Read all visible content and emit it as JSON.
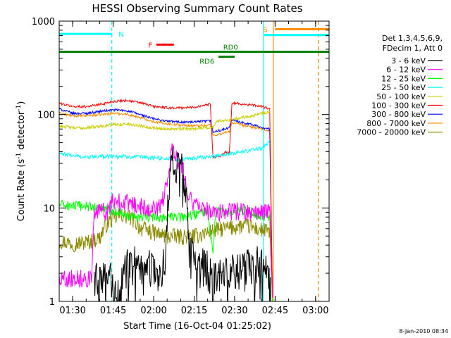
{
  "chart_data": {
    "type": "line",
    "title": "HESSI Observing Summary Count Rates",
    "xlabel": "Start Time (16-Oct-04 01:25:02)",
    "ylabel_main": "Count Rate (s",
    "ylabel_sup1": "-1",
    "ylabel_mid": " detector",
    "ylabel_sup2": "-1",
    "ylabel_end": ")",
    "yscale": "log",
    "xlim": [
      85,
      185
    ],
    "ylim": [
      1,
      1000
    ],
    "x_ticks": [
      90,
      105,
      120,
      135,
      150,
      165,
      180
    ],
    "x_tick_labels": [
      "01:30",
      "01:45",
      "02:00",
      "02:15",
      "02:30",
      "02:45",
      "03:00"
    ],
    "y_ticks": [
      1,
      10,
      100,
      1000
    ],
    "y_tick_labels": [
      "1",
      "10",
      "100",
      "1000"
    ],
    "legend_header": [
      "Det 1,3,4,5,6,9,",
      "FDecim 1, Att 0"
    ],
    "legend_placement": "right",
    "series": [
      {
        "name": "3 - 6 keV",
        "color": "#000000",
        "base": [
          [
            85,
            1.7
          ],
          [
            100,
            1.8
          ],
          [
            104,
            1.8
          ],
          [
            106,
            1.1
          ],
          [
            110,
            2.5
          ],
          [
            115,
            2.8
          ],
          [
            118,
            2.6
          ],
          [
            121,
            1.9
          ],
          [
            124,
            2.8
          ],
          [
            125,
            8
          ],
          [
            126,
            25
          ],
          [
            127,
            32
          ],
          [
            128,
            25
          ],
          [
            129,
            30
          ],
          [
            130,
            32
          ],
          [
            131,
            22
          ],
          [
            132,
            15
          ],
          [
            133,
            7
          ],
          [
            135,
            3.0
          ],
          [
            140,
            2.4
          ],
          [
            142,
            1.7
          ],
          [
            145,
            2.4
          ],
          [
            150,
            2.3
          ],
          [
            155,
            2.5
          ],
          [
            160,
            2.8
          ],
          [
            162,
            2.6
          ],
          [
            163,
            1.5
          ],
          [
            164,
            1.0
          ]
        ],
        "noise": 0.45,
        "start": 98,
        "end": 164
      },
      {
        "name": "6 - 12 keV",
        "color": "#ff00ff",
        "base": [
          [
            85,
            1.8
          ],
          [
            97,
            1.8
          ],
          [
            98,
            9
          ],
          [
            103,
            9.5
          ],
          [
            105,
            12
          ],
          [
            110,
            11.5
          ],
          [
            115,
            10.5
          ],
          [
            120,
            10
          ],
          [
            123,
            11
          ],
          [
            125,
            20
          ],
          [
            127,
            50
          ],
          [
            128,
            38
          ],
          [
            129,
            32
          ],
          [
            130,
            30
          ],
          [
            131,
            26
          ],
          [
            132,
            20
          ],
          [
            133,
            14
          ],
          [
            135,
            11
          ],
          [
            140,
            9.5
          ],
          [
            145,
            9
          ],
          [
            150,
            9.5
          ],
          [
            155,
            9
          ],
          [
            160,
            9
          ],
          [
            163,
            9.5
          ],
          [
            164,
            1.0
          ]
        ],
        "noise": 0.22,
        "start": 85,
        "end": 164
      },
      {
        "name": "12 - 25 keV",
        "color": "#00ff00",
        "base": [
          [
            85,
            11
          ],
          [
            90,
            10.5
          ],
          [
            95,
            10.5
          ],
          [
            100,
            10
          ],
          [
            105,
            9.5
          ],
          [
            110,
            8.5
          ],
          [
            115,
            8
          ],
          [
            120,
            8
          ],
          [
            125,
            8
          ],
          [
            130,
            8
          ],
          [
            135,
            8.5
          ],
          [
            140,
            9.5
          ],
          [
            142,
            3
          ],
          [
            143,
            9.5
          ],
          [
            145,
            9
          ],
          [
            150,
            9
          ],
          [
            155,
            9.5
          ],
          [
            158,
            8.5
          ],
          [
            162,
            8
          ],
          [
            163,
            7.5
          ],
          [
            164,
            1.0
          ]
        ],
        "noise": 0.12,
        "start": 85,
        "end": 164
      },
      {
        "name": "25 - 50 keV",
        "color": "#00ffff",
        "base": [
          [
            85,
            38
          ],
          [
            95,
            35
          ],
          [
            105,
            36
          ],
          [
            115,
            35
          ],
          [
            125,
            34
          ],
          [
            130,
            33
          ],
          [
            135,
            34
          ],
          [
            140,
            35
          ],
          [
            145,
            37
          ],
          [
            150,
            39
          ],
          [
            155,
            41
          ],
          [
            160,
            44
          ],
          [
            163,
            52
          ]
        ],
        "noise": 0.05,
        "start": 85,
        "end": 163
      },
      {
        "name": "50 - 100 keV",
        "color": "#cccc00",
        "base": [
          [
            85,
            76
          ],
          [
            90,
            72
          ],
          [
            95,
            72
          ],
          [
            100,
            75
          ],
          [
            105,
            78
          ],
          [
            110,
            79
          ],
          [
            115,
            76
          ],
          [
            120,
            72
          ],
          [
            125,
            70
          ],
          [
            130,
            70
          ],
          [
            135,
            71
          ],
          [
            140,
            73
          ],
          [
            142,
            73
          ],
          [
            143,
            83
          ],
          [
            145,
            86
          ],
          [
            150,
            90
          ],
          [
            155,
            96
          ],
          [
            160,
            103
          ],
          [
            163,
            108
          ]
        ],
        "noise": 0.04,
        "start": 85,
        "end": 163
      },
      {
        "name": "100 - 300 keV",
        "color": "#ff0000",
        "base": [
          [
            85,
            132
          ],
          [
            90,
            122
          ],
          [
            95,
            122
          ],
          [
            100,
            128
          ],
          [
            105,
            138
          ],
          [
            110,
            142
          ],
          [
            115,
            134
          ],
          [
            120,
            122
          ],
          [
            125,
            118
          ],
          [
            130,
            118
          ],
          [
            135,
            120
          ],
          [
            140,
            128
          ],
          [
            141,
            130
          ],
          [
            142,
            35
          ],
          [
            145,
            36
          ],
          [
            147,
            40
          ],
          [
            148,
            38
          ],
          [
            149,
            130
          ],
          [
            150,
            132
          ],
          [
            155,
            128
          ],
          [
            160,
            122
          ],
          [
            163,
            115
          ],
          [
            164,
            1.2
          ]
        ],
        "noise": 0.03,
        "start": 85,
        "end": 164
      },
      {
        "name": "300 - 800 keV",
        "color": "#0000ff",
        "base": [
          [
            85,
            115
          ],
          [
            90,
            103
          ],
          [
            95,
            103
          ],
          [
            100,
            108
          ],
          [
            105,
            112
          ],
          [
            110,
            110
          ],
          [
            115,
            100
          ],
          [
            120,
            90
          ],
          [
            125,
            85
          ],
          [
            130,
            83
          ],
          [
            135,
            83
          ],
          [
            140,
            85
          ],
          [
            141,
            86
          ],
          [
            142,
            65
          ],
          [
            145,
            68
          ],
          [
            148,
            72
          ],
          [
            149,
            88
          ],
          [
            150,
            86
          ],
          [
            155,
            80
          ],
          [
            160,
            73
          ],
          [
            163,
            70
          ],
          [
            164,
            1.2
          ]
        ],
        "noise": 0.03,
        "start": 85,
        "end": 164
      },
      {
        "name": "800 - 7000 keV",
        "color": "#ff8c00",
        "base": [
          [
            85,
            103
          ],
          [
            90,
            97
          ],
          [
            95,
            97
          ],
          [
            100,
            100
          ],
          [
            105,
            103
          ],
          [
            110,
            101
          ],
          [
            115,
            93
          ],
          [
            120,
            84
          ],
          [
            125,
            80
          ],
          [
            130,
            77
          ],
          [
            135,
            76
          ],
          [
            140,
            77
          ],
          [
            141,
            78
          ],
          [
            142,
            60
          ],
          [
            145,
            62
          ],
          [
            148,
            66
          ],
          [
            149,
            82
          ],
          [
            150,
            80
          ],
          [
            155,
            75
          ],
          [
            160,
            70
          ],
          [
            163,
            67
          ],
          [
            164,
            1.2
          ]
        ],
        "noise": 0.03,
        "start": 85,
        "end": 164
      },
      {
        "name": "7000 - 20000 keV",
        "color": "#8b8b00",
        "base": [
          [
            85,
            4.5
          ],
          [
            90,
            4.2
          ],
          [
            95,
            4.3
          ],
          [
            100,
            4.8
          ],
          [
            102,
            6.5
          ],
          [
            104,
            7.5
          ],
          [
            108,
            8.5
          ],
          [
            112,
            7.8
          ],
          [
            115,
            6.2
          ],
          [
            120,
            5.5
          ],
          [
            125,
            5
          ],
          [
            130,
            5
          ],
          [
            135,
            5
          ],
          [
            140,
            5.5
          ],
          [
            145,
            6
          ],
          [
            150,
            6.3
          ],
          [
            155,
            6.5
          ],
          [
            158,
            6
          ],
          [
            162,
            5.7
          ],
          [
            163,
            5.7
          ],
          [
            164,
            1.0
          ]
        ],
        "noise": 0.2,
        "start": 85,
        "end": 164
      }
    ],
    "vlines": [
      {
        "x": 104.5,
        "color": "#00ffff",
        "style": "dashed"
      },
      {
        "x": 160.7,
        "color": "#00ffff",
        "style": "solid"
      },
      {
        "x": 164.3,
        "color": "#ff8c00",
        "style": "solid"
      },
      {
        "x": 181.0,
        "color": "#00ffff",
        "style": "dashed"
      },
      {
        "x": 181.0,
        "color": "#ff8c00",
        "style": "dashed"
      }
    ],
    "bars": [
      {
        "label": "N",
        "color": "#00ffff",
        "x0": 85,
        "x1": 104.5,
        "y": 730,
        "label_x": 107,
        "label_side": "right"
      },
      {
        "label": "F",
        "color": "#ff0000",
        "x0": 121,
        "x1": 127.5,
        "y": 560,
        "label_x": 119.5,
        "label_side": "left"
      },
      {
        "label": "RD0",
        "color": "#008000",
        "x0": 85,
        "x1": 185,
        "y": 470,
        "label_x": 148.5,
        "label_side": "center_above"
      },
      {
        "label": "RD6",
        "color": "#008000",
        "x0": 144,
        "x1": 150,
        "y": 415,
        "label_x": 142.5,
        "label_side": "left_below"
      },
      {
        "label": "S",
        "color": "#ff8c00",
        "x0": 165,
        "x1": 185,
        "y": 820,
        "label_x": 162.2,
        "label_side": "left"
      },
      {
        "label": "",
        "color": "#00ffff",
        "x0": 161,
        "x1": 185,
        "y": 710,
        "label_x": 0,
        "label_side": "none"
      }
    ]
  },
  "footer": {
    "date": "8-Jan-2010 08:34"
  }
}
